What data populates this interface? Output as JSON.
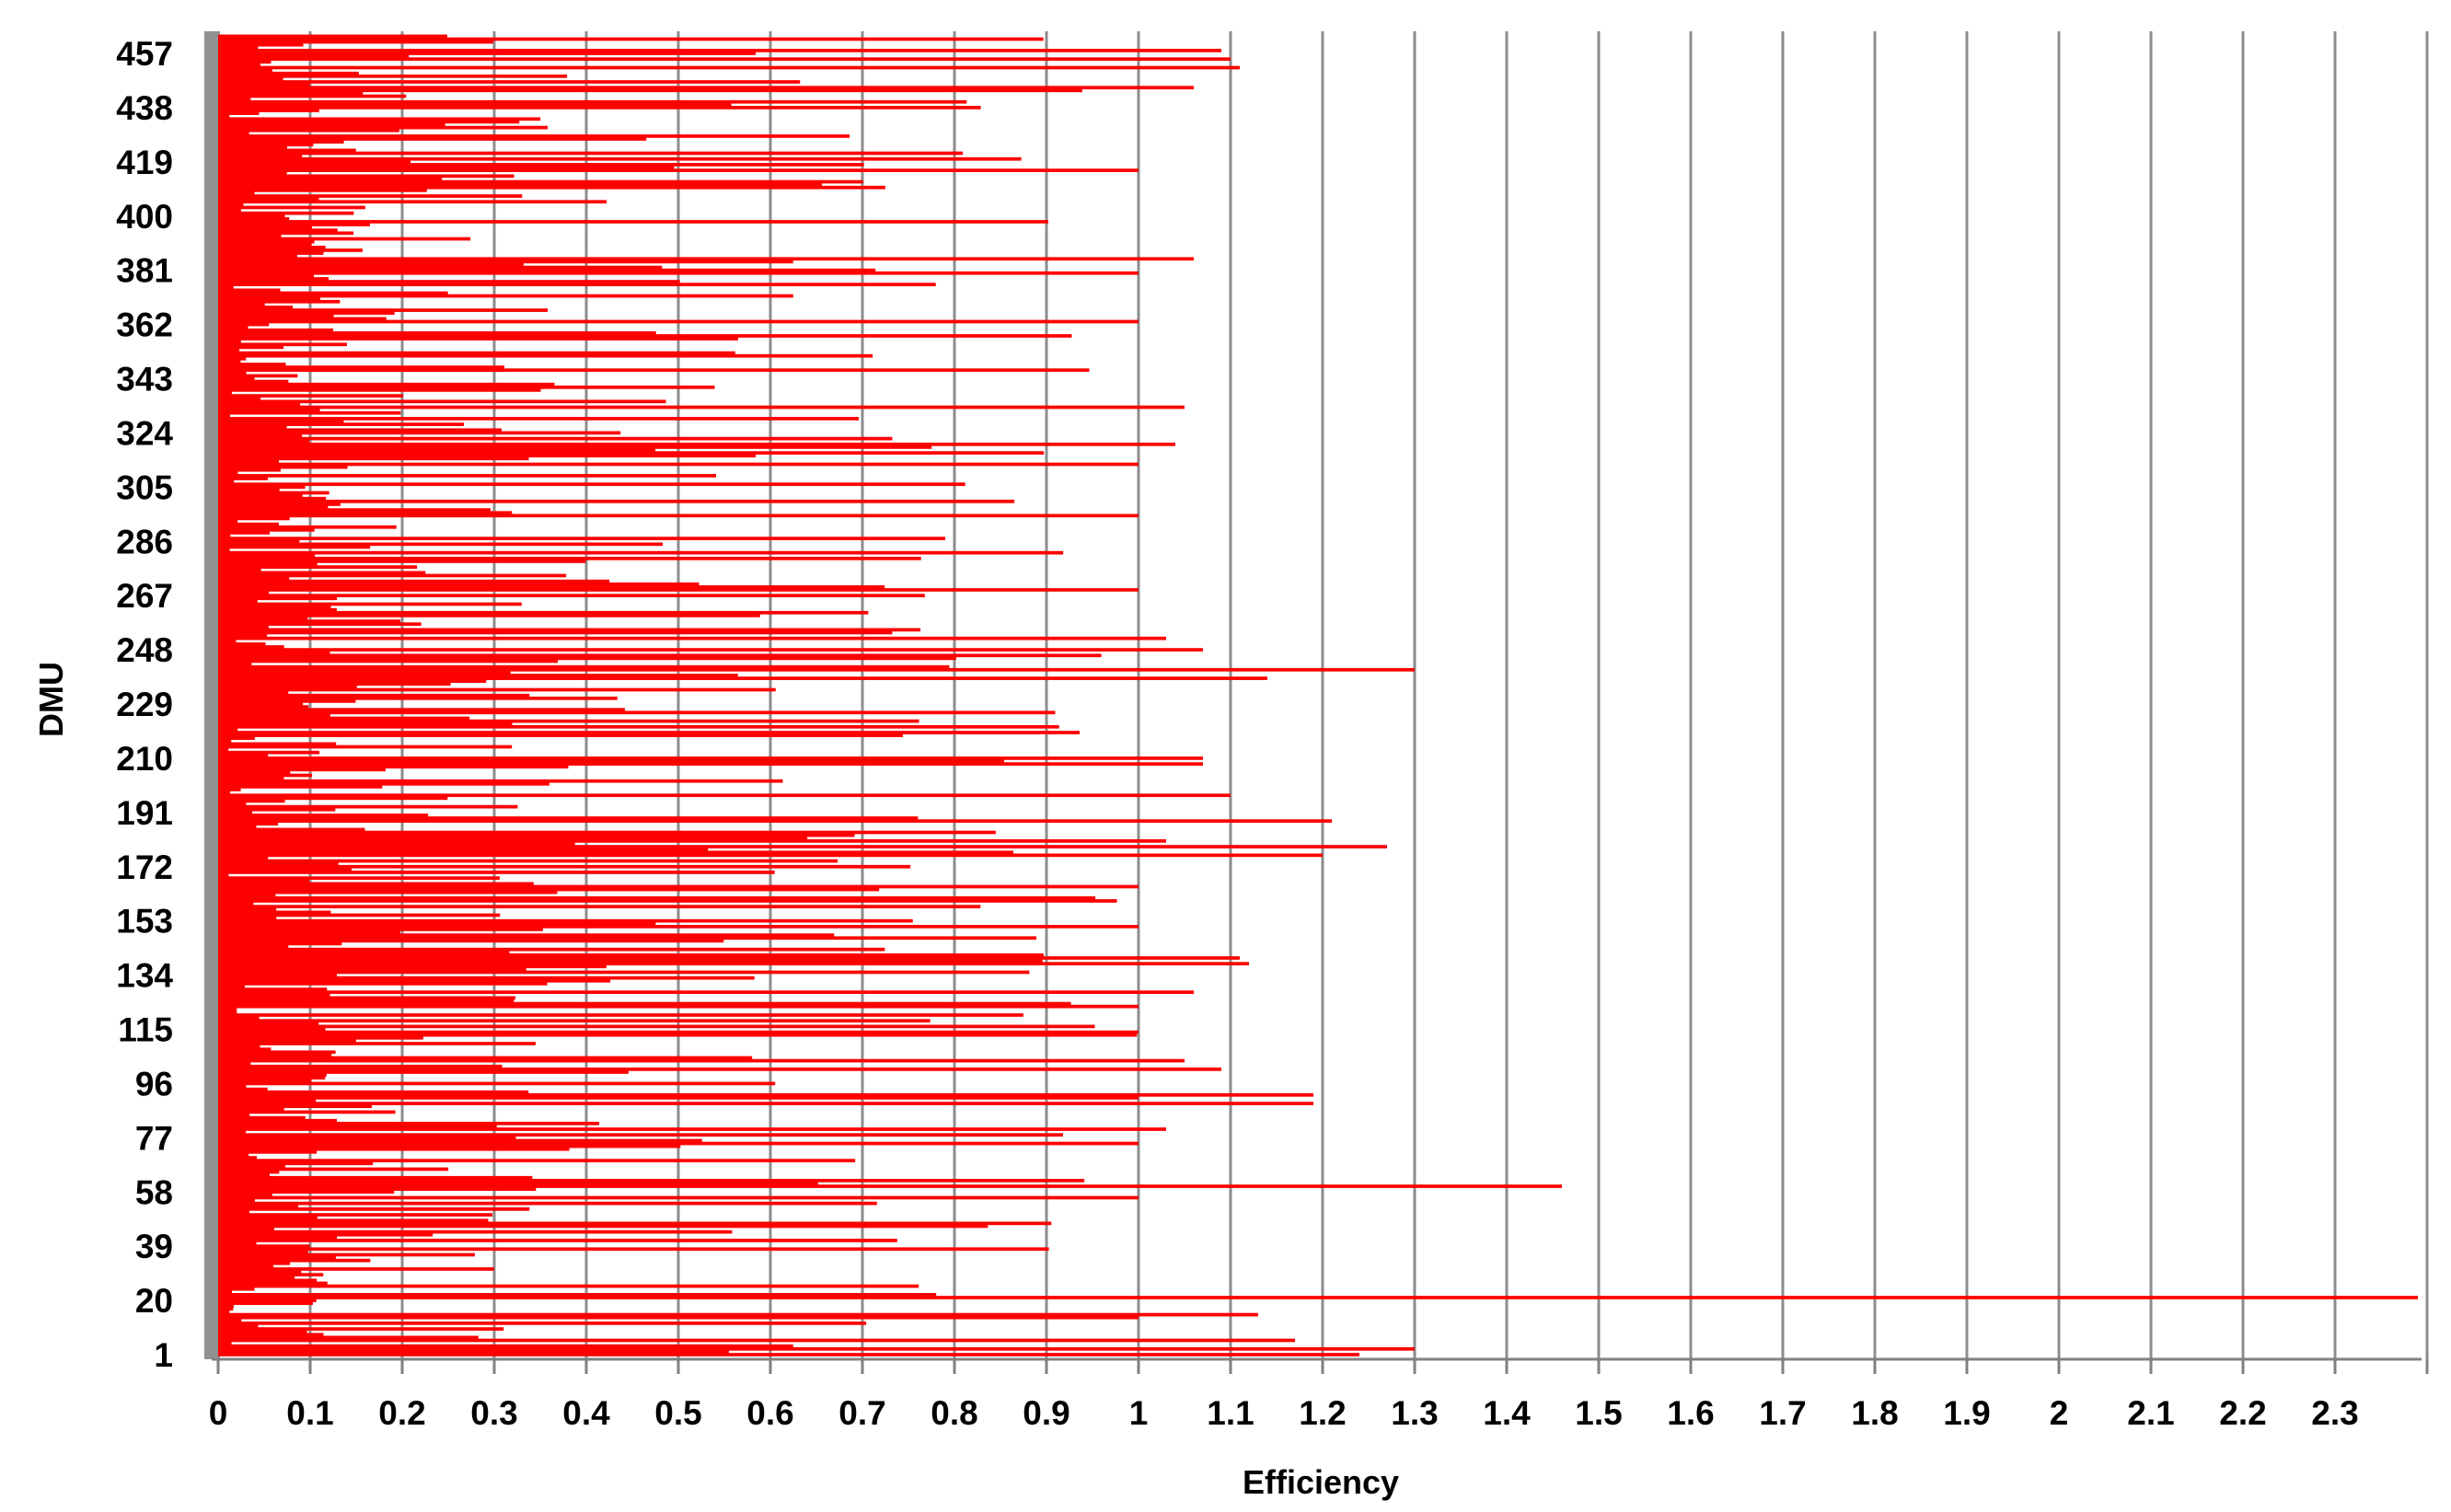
{
  "chart_data": {
    "type": "bar",
    "orientation": "horizontal",
    "xlabel": "Efficiency",
    "ylabel": "DMU",
    "xlim": [
      0,
      2.4
    ],
    "x_ticks": [
      "0",
      "0.1",
      "0.2",
      "0.3",
      "0.4",
      "0.5",
      "0.6",
      "0.7",
      "0.8",
      "0.9",
      "1",
      "1.1",
      "1.2",
      "1.3",
      "1.4",
      "1.5",
      "1.6",
      "1.7",
      "1.8",
      "1.9",
      "2",
      "2.1",
      "2.2",
      "2.3"
    ],
    "y_ticks": [
      "1",
      "20",
      "39",
      "58",
      "77",
      "96",
      "115",
      "134",
      "153",
      "172",
      "191",
      "210",
      "229",
      "248",
      "267",
      "286",
      "305",
      "324",
      "343",
      "362",
      "381",
      "400",
      "419",
      "438",
      "457"
    ],
    "dmu_count": 463,
    "grid": "vertical",
    "bar_color": "#ff0000",
    "highlighted_values": [
      {
        "dmu": 1,
        "value": 1.24
      },
      {
        "dmu": 3,
        "value": 1.3
      },
      {
        "dmu": 6,
        "value": 1.17
      },
      {
        "dmu": 15,
        "value": 1.13
      },
      {
        "dmu": 21,
        "value": 2.39
      },
      {
        "dmu": 60,
        "value": 1.46
      },
      {
        "dmu": 80,
        "value": 1.03
      },
      {
        "dmu": 89,
        "value": 1.19
      },
      {
        "dmu": 92,
        "value": 1.19
      },
      {
        "dmu": 101,
        "value": 1.09
      },
      {
        "dmu": 104,
        "value": 1.05
      },
      {
        "dmu": 128,
        "value": 1.06
      },
      {
        "dmu": 138,
        "value": 1.12
      },
      {
        "dmu": 140,
        "value": 1.11
      },
      {
        "dmu": 176,
        "value": 1.2
      },
      {
        "dmu": 179,
        "value": 1.27
      },
      {
        "dmu": 181,
        "value": 1.03
      },
      {
        "dmu": 188,
        "value": 1.21
      },
      {
        "dmu": 197,
        "value": 1.1
      },
      {
        "dmu": 208,
        "value": 1.07
      },
      {
        "dmu": 210,
        "value": 1.07
      },
      {
        "dmu": 238,
        "value": 1.14
      },
      {
        "dmu": 241,
        "value": 1.3
      },
      {
        "dmu": 248,
        "value": 1.07
      },
      {
        "dmu": 252,
        "value": 1.03
      },
      {
        "dmu": 320,
        "value": 1.04
      },
      {
        "dmu": 333,
        "value": 1.05
      },
      {
        "dmu": 385,
        "value": 1.06
      },
      {
        "dmu": 445,
        "value": 1.06
      },
      {
        "dmu": 452,
        "value": 1.11
      },
      {
        "dmu": 455,
        "value": 1.1
      },
      {
        "dmu": 458,
        "value": 1.09
      }
    ]
  }
}
